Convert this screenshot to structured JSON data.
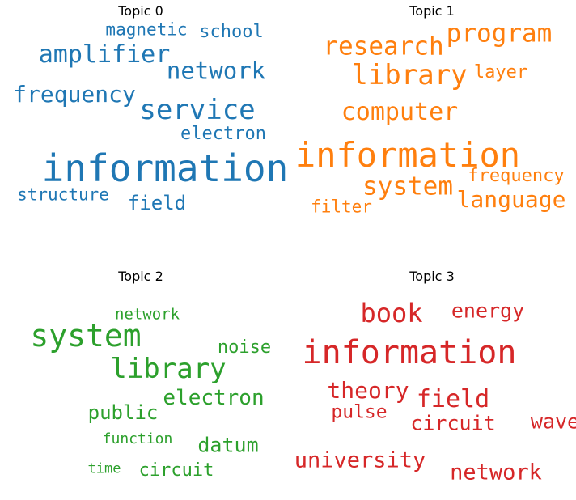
{
  "chart_data": [
    {
      "type": "wordcloud",
      "title": "Topic 0",
      "color": "#1f77b4",
      "words": [
        {
          "text": "information",
          "weight": 1.0
        },
        {
          "text": "service",
          "weight": 0.72
        },
        {
          "text": "amplifier",
          "weight": 0.65
        },
        {
          "text": "network",
          "weight": 0.6
        },
        {
          "text": "frequency",
          "weight": 0.6
        },
        {
          "text": "field",
          "weight": 0.5
        },
        {
          "text": "electron",
          "weight": 0.46
        },
        {
          "text": "magnetic",
          "weight": 0.45
        },
        {
          "text": "school",
          "weight": 0.45
        },
        {
          "text": "structure",
          "weight": 0.44
        }
      ]
    },
    {
      "type": "wordcloud",
      "title": "Topic 1",
      "color": "#ff7f0e",
      "words": [
        {
          "text": "information",
          "weight": 1.0
        },
        {
          "text": "library",
          "weight": 0.8
        },
        {
          "text": "program",
          "weight": 0.72
        },
        {
          "text": "research",
          "weight": 0.7
        },
        {
          "text": "system",
          "weight": 0.7
        },
        {
          "text": "computer",
          "weight": 0.68
        },
        {
          "text": "language",
          "weight": 0.62
        },
        {
          "text": "frequency",
          "weight": 0.52
        },
        {
          "text": "layer",
          "weight": 0.52
        },
        {
          "text": "filter",
          "weight": 0.48
        }
      ]
    },
    {
      "type": "wordcloud",
      "title": "Topic 2",
      "color": "#2ca02c",
      "words": [
        {
          "text": "system",
          "weight": 1.0
        },
        {
          "text": "library",
          "weight": 0.85
        },
        {
          "text": "electron",
          "weight": 0.68
        },
        {
          "text": "datum",
          "weight": 0.62
        },
        {
          "text": "public",
          "weight": 0.6
        },
        {
          "text": "noise",
          "weight": 0.55
        },
        {
          "text": "circuit",
          "weight": 0.55
        },
        {
          "text": "network",
          "weight": 0.48
        },
        {
          "text": "function",
          "weight": 0.46
        },
        {
          "text": "time",
          "weight": 0.44
        }
      ]
    },
    {
      "type": "wordcloud",
      "title": "Topic 3",
      "color": "#d62728",
      "words": [
        {
          "text": "information",
          "weight": 1.0
        },
        {
          "text": "book",
          "weight": 0.8
        },
        {
          "text": "field",
          "weight": 0.75
        },
        {
          "text": "theory",
          "weight": 0.7
        },
        {
          "text": "university",
          "weight": 0.64
        },
        {
          "text": "energy",
          "weight": 0.62
        },
        {
          "text": "circuit",
          "weight": 0.62
        },
        {
          "text": "wave",
          "weight": 0.62
        },
        {
          "text": "network",
          "weight": 0.62
        },
        {
          "text": "pulse",
          "weight": 0.6
        }
      ]
    }
  ]
}
